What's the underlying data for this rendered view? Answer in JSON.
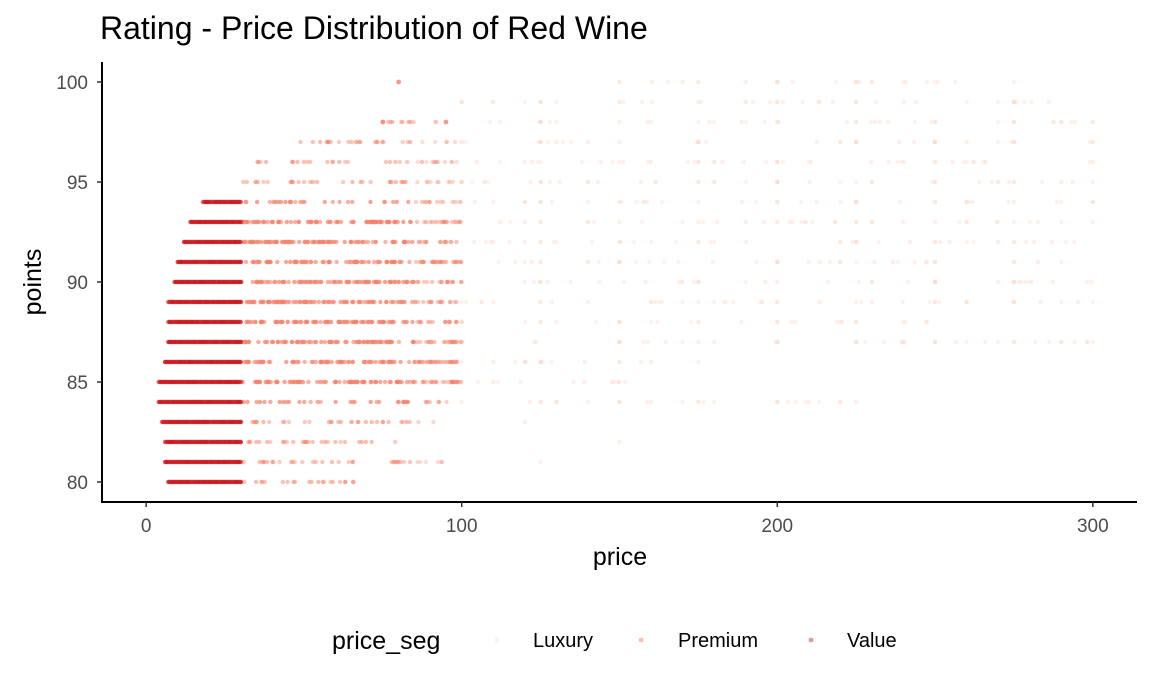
{
  "chart_data": {
    "type": "scatter",
    "title": "Rating - Price Distribution of Red Wine",
    "xlabel": "price",
    "ylabel": "points",
    "xlim": [
      -14,
      314
    ],
    "ylim": [
      79,
      101
    ],
    "x_ticks": [
      0,
      100,
      200,
      300
    ],
    "y_ticks": [
      80,
      85,
      90,
      95,
      100
    ],
    "grid": false,
    "legend": {
      "title": "price_seg",
      "placement": "bottom",
      "entries": [
        "Luxury",
        "Premium",
        "Value"
      ]
    },
    "series": [
      {
        "name": "Value",
        "price_range": [
          4,
          30
        ],
        "points_range": [
          80,
          94
        ],
        "rows": [
          {
            "y": 80,
            "x_min": 7,
            "x_max": 30
          },
          {
            "y": 81,
            "x_min": 6,
            "x_max": 30
          },
          {
            "y": 82,
            "x_min": 6,
            "x_max": 30
          },
          {
            "y": 83,
            "x_min": 5,
            "x_max": 30
          },
          {
            "y": 84,
            "x_min": 4,
            "x_max": 30
          },
          {
            "y": 85,
            "x_min": 4,
            "x_max": 30
          },
          {
            "y": 86,
            "x_min": 6,
            "x_max": 30
          },
          {
            "y": 87,
            "x_min": 7,
            "x_max": 30
          },
          {
            "y": 88,
            "x_min": 7,
            "x_max": 30
          },
          {
            "y": 89,
            "x_min": 7,
            "x_max": 30
          },
          {
            "y": 90,
            "x_min": 9,
            "x_max": 30
          },
          {
            "y": 91,
            "x_min": 10,
            "x_max": 30
          },
          {
            "y": 92,
            "x_min": 12,
            "x_max": 30
          },
          {
            "y": 93,
            "x_min": 14,
            "x_max": 30
          },
          {
            "y": 94,
            "x_min": 18,
            "x_max": 30
          }
        ]
      },
      {
        "name": "Premium",
        "price_range": [
          30,
          100
        ],
        "points_range": [
          80,
          98
        ],
        "rows": [
          {
            "y": 80,
            "x_min": 30,
            "x_max": 70
          },
          {
            "y": 81,
            "x_min": 30,
            "x_max": 95
          },
          {
            "y": 82,
            "x_min": 30,
            "x_max": 82
          },
          {
            "y": 83,
            "x_min": 30,
            "x_max": 92
          },
          {
            "y": 84,
            "x_min": 30,
            "x_max": 96
          },
          {
            "y": 85,
            "x_min": 30,
            "x_max": 100
          },
          {
            "y": 86,
            "x_min": 30,
            "x_max": 100
          },
          {
            "y": 87,
            "x_min": 30,
            "x_max": 100
          },
          {
            "y": 88,
            "x_min": 30,
            "x_max": 100
          },
          {
            "y": 89,
            "x_min": 30,
            "x_max": 100
          },
          {
            "y": 90,
            "x_min": 30,
            "x_max": 100
          },
          {
            "y": 91,
            "x_min": 30,
            "x_max": 100
          },
          {
            "y": 92,
            "x_min": 30,
            "x_max": 100
          },
          {
            "y": 93,
            "x_min": 30,
            "x_max": 100
          },
          {
            "y": 94,
            "x_min": 30,
            "x_max": 100
          },
          {
            "y": 95,
            "x_min": 30,
            "x_max": 100
          },
          {
            "y": 96,
            "x_min": 35,
            "x_max": 100
          },
          {
            "y": 97,
            "x_min": 48,
            "x_max": 98
          },
          {
            "y": 98,
            "x_min": 75,
            "x_max": 95
          }
        ]
      },
      {
        "name": "Luxury",
        "price_range": [
          100,
          300
        ],
        "points_range": [
          81,
          100
        ],
        "rows": [
          {
            "y": 81,
            "x_min": 125,
            "x_max": 125
          },
          {
            "y": 82,
            "x_min": 150,
            "x_max": 150
          },
          {
            "y": 83,
            "x_min": 120,
            "x_max": 125
          },
          {
            "y": 84,
            "x_min": 100,
            "x_max": 225
          },
          {
            "y": 85,
            "x_min": 100,
            "x_max": 160
          },
          {
            "y": 86,
            "x_min": 100,
            "x_max": 180
          },
          {
            "y": 87,
            "x_min": 100,
            "x_max": 300
          },
          {
            "y": 88,
            "x_min": 100,
            "x_max": 250
          },
          {
            "y": 89,
            "x_min": 100,
            "x_max": 300
          },
          {
            "y": 90,
            "x_min": 100,
            "x_max": 300
          },
          {
            "y": 91,
            "x_min": 100,
            "x_max": 300
          },
          {
            "y": 92,
            "x_min": 100,
            "x_max": 300
          },
          {
            "y": 93,
            "x_min": 100,
            "x_max": 300
          },
          {
            "y": 94,
            "x_min": 100,
            "x_max": 300
          },
          {
            "y": 95,
            "x_min": 100,
            "x_max": 300
          },
          {
            "y": 96,
            "x_min": 100,
            "x_max": 300
          },
          {
            "y": 97,
            "x_min": 100,
            "x_max": 300
          },
          {
            "y": 98,
            "x_min": 100,
            "x_max": 300
          },
          {
            "y": 99,
            "x_min": 100,
            "x_max": 300
          },
          {
            "y": 100,
            "x_min": 150,
            "x_max": 270
          }
        ]
      }
    ],
    "highlight_points": [
      {
        "x": 80,
        "y": 100
      },
      {
        "x": 75,
        "y": 98
      },
      {
        "x": 95,
        "y": 98
      }
    ],
    "colors": {
      "Value": "#cb181d",
      "Premium": "#f4826b",
      "Luxury": "#fdd9cc"
    },
    "opacity": {
      "Value": 0.85,
      "Premium": 0.75,
      "Luxury": 0.45
    }
  }
}
